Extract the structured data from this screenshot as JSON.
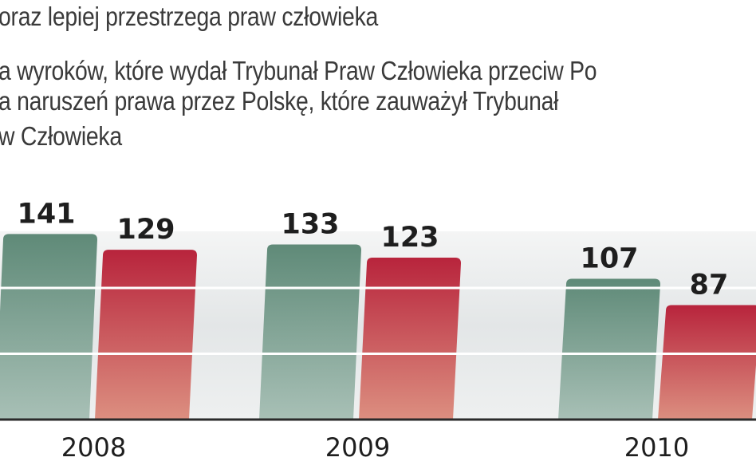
{
  "header": {
    "title": "oraz lepiej przestrzega praw człowieka",
    "legend_line_1": "a wyroków, które wydał Trybunał Praw Człowieka przeciw Po",
    "legend_line_2": "a naruszeń prawa przez Polskę, które zauważył Trybunał",
    "legend_line_3": "w Człowieka"
  },
  "chart_data": {
    "type": "bar",
    "categories": [
      "2008",
      "2009",
      "2010"
    ],
    "series": [
      {
        "values": [
          141,
          133,
          107
        ]
      },
      {
        "values": [
          129,
          123,
          87
        ]
      }
    ],
    "data_labels": [
      [
        "141",
        "129"
      ],
      [
        "133",
        "123"
      ],
      [
        "107",
        "87"
      ]
    ],
    "ylim": [
      0,
      160
    ],
    "grid": true,
    "colors": {
      "series1_top": "#5f8a78",
      "series1_bottom": "#a8c0b6",
      "series2_top": "#b8243c",
      "series2_bottom": "#dc8f80",
      "gridline": "#ffffff",
      "band": "#e6e8e9",
      "axis": "#2b2b2b"
    }
  }
}
